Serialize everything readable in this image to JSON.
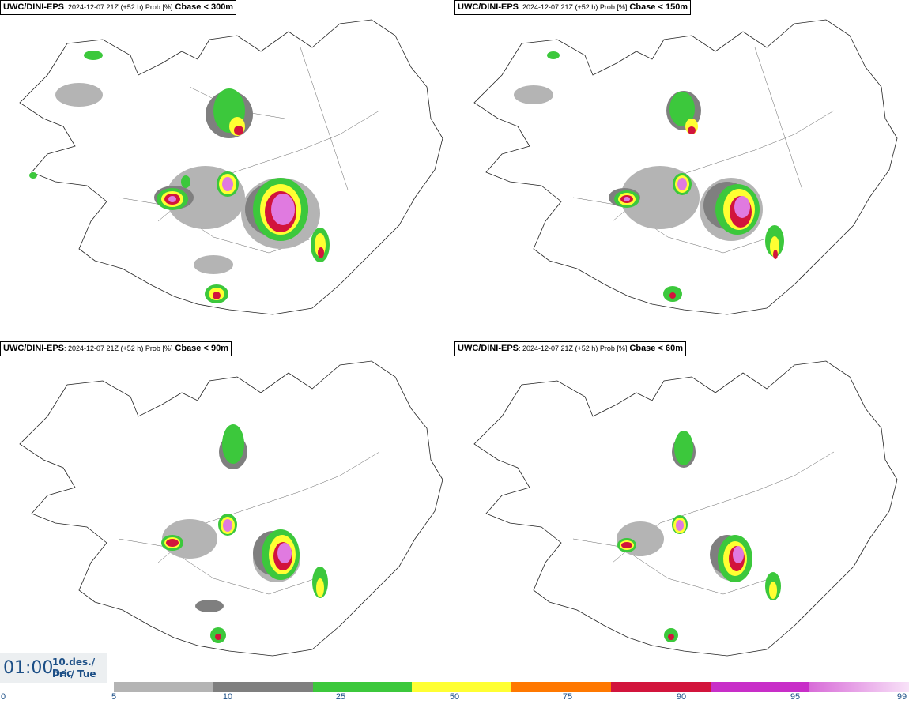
{
  "panels": [
    {
      "model": "UWC/DINI-EPS",
      "meta": ": 2024-12-07 21Z (+52 h) Prob [%]",
      "param": "Cbase < 300m"
    },
    {
      "model": "UWC/DINI-EPS",
      "meta": ": 2024-12-07 21Z (+52 h) Prob [%]",
      "param": "Cbase < 150m"
    },
    {
      "model": "UWC/DINI-EPS",
      "meta": ": 2024-12-07 21Z (+52 h) Prob [%]",
      "param": "Cbase < 90m"
    },
    {
      "model": "UWC/DINI-EPS",
      "meta": ": 2024-12-07 21Z (+52 h) Prob [%]",
      "param": "Cbase < 60m"
    }
  ],
  "time": {
    "clock": "01:00",
    "date_line": "10.des./ Dec",
    "day_line": "Þri./ Tue"
  },
  "colorbar": {
    "labels": [
      "0",
      "5",
      "10",
      "25",
      "50",
      "75",
      "90",
      "95",
      "99"
    ],
    "colors": [
      "#b4b4b4",
      "#7f7f7f",
      "#3cc83c",
      "#ffff32",
      "#ff7800",
      "#d2143c",
      "#c82ec8",
      "#f0b4f0"
    ]
  }
}
